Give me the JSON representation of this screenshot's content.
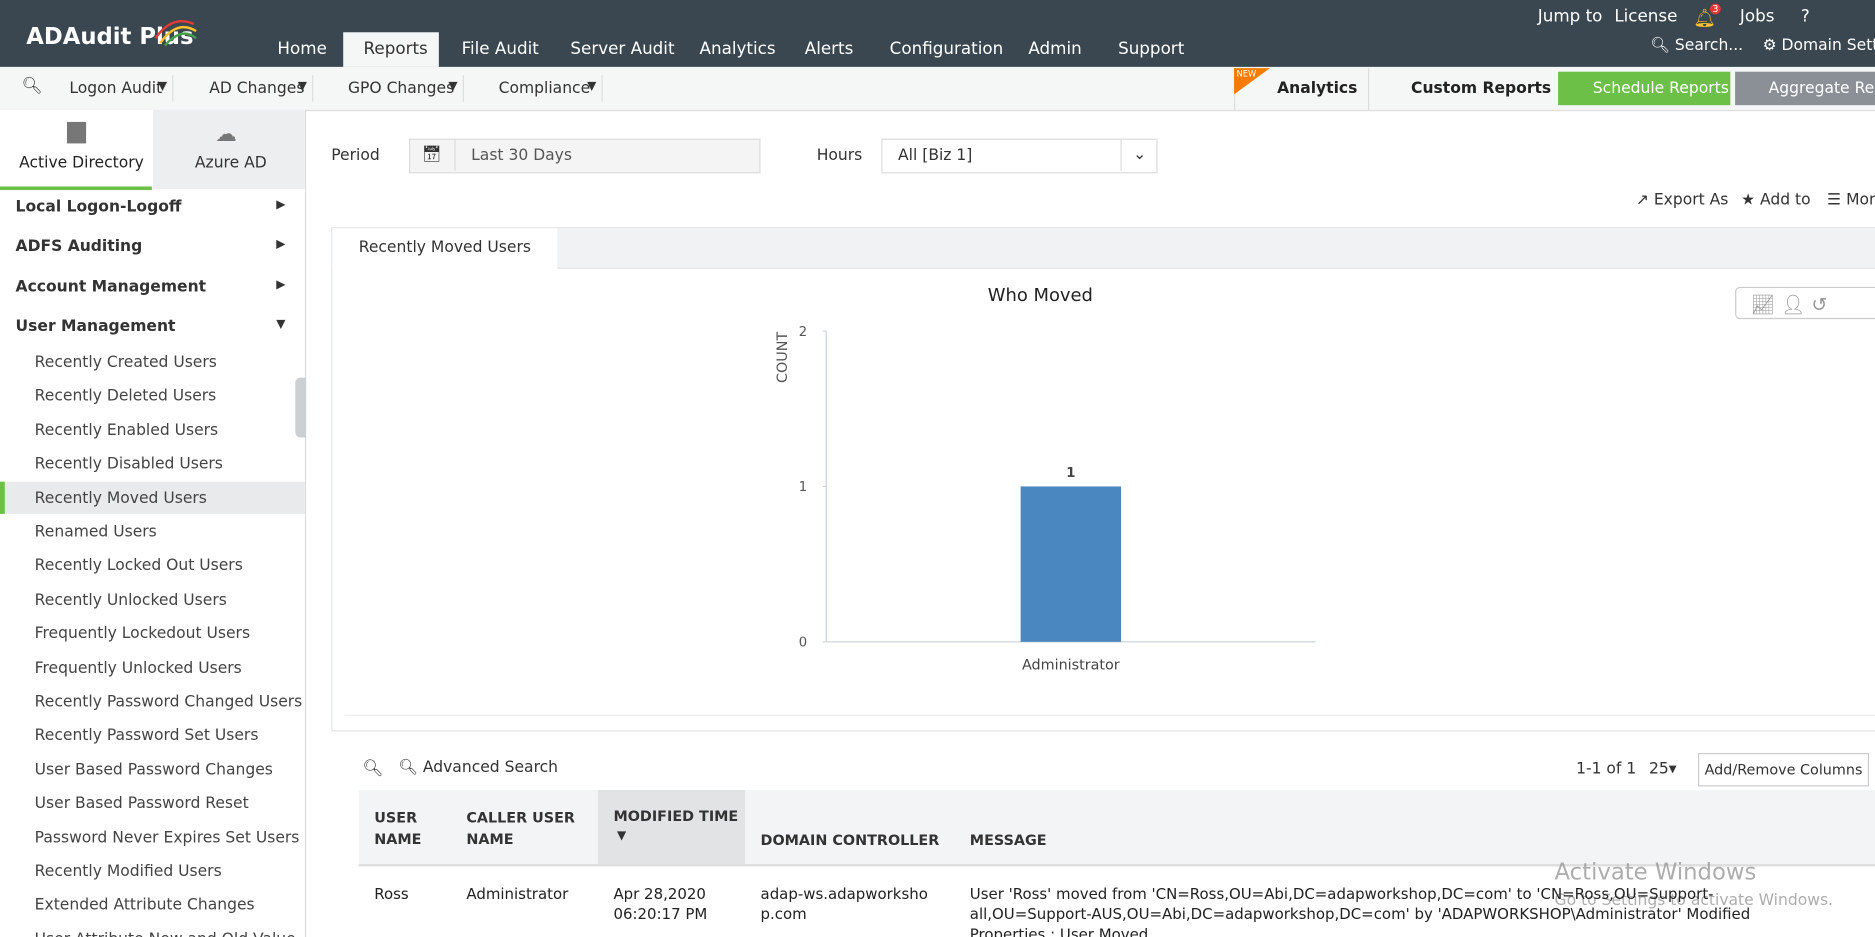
{
  "header": {
    "logo": "ADAudit Plus",
    "top_links": [
      "Jump to",
      "License",
      "Jobs",
      "?"
    ],
    "notification_count": 3,
    "search": "Search...",
    "domain_settings": "Domain Settin"
  },
  "nav_tabs": [
    "Home",
    "Reports",
    "File Audit",
    "Server Audit",
    "Analytics",
    "Alerts",
    "Configuration",
    "Admin",
    "Support"
  ],
  "active_tab": "Reports",
  "sub_menus": [
    "Logon Audit",
    "AD Changes",
    "GPO Changes",
    "Compliance"
  ],
  "new_badge": "NEW",
  "actions": [
    "Analytics",
    "Custom Reports",
    "Schedule Reports",
    "Aggregate Repo"
  ],
  "sidebar": {
    "tabs": [
      "Active Directory",
      "Azure AD"
    ],
    "groups": [
      "Local Logon-Logoff",
      "ADFS Auditing",
      "Account Management",
      "User Management"
    ],
    "items": [
      "Recently Created Users",
      "Recently Deleted Users",
      "Recently Enabled Users",
      "Recently Disabled Users",
      "Recently Moved Users",
      "Renamed Users",
      "Recently Locked Out Users",
      "Recently Unlocked Users",
      "Frequently Lockedout Users",
      "Frequently Unlocked Users",
      "Recently Password Changed Users",
      "Recently Password Set Users",
      "User Based Password Changes",
      "User Based Password Reset",
      "Password Never Expires Set Users",
      "Recently Modified Users",
      "Extended Attribute Changes",
      "User Attribute New and Old Value"
    ],
    "selected": "Recently Moved Users"
  },
  "filters": {
    "period_label": "Period",
    "period": "Last 30 Days",
    "hours_label": "Hours",
    "hours": "All [Biz 1]"
  },
  "toolbar": [
    "Export As",
    "Add to",
    "Mor"
  ],
  "report_tab": "Recently Moved Users",
  "chart_data": {
    "type": "bar",
    "title": "Who Moved",
    "y_label": "COUNT",
    "categories": [
      "Administrator"
    ],
    "values": [
      1
    ],
    "color": "#4a86c0",
    "ylim": [
      0,
      2
    ],
    "yticks": [
      0,
      1,
      2
    ]
  },
  "table": {
    "advanced_search": "Advanced Search",
    "pagination": "1-1 of 1",
    "page_size": 25,
    "add_remove": "Add/Remove Columns",
    "columns": [
      "USER NAME",
      "CALLER USER NAME",
      "MODIFIED TIME",
      "DOMAIN CONTROLLER",
      "MESSAGE"
    ],
    "rows": [
      [
        "Ross",
        "Administrator",
        "Apr 28,2020 06:20:17 PM",
        "adap-ws.adapworkshop.com",
        "User 'Ross' moved from 'CN=Ross,OU=Abi,DC=adapworkshop,DC=com' to 'CN=Ross,OU=Support-all,OU=Support-AUS,OU=Abi,DC=adapworkshop,DC=com' by 'ADAPWORKSHOP\\Administrator' Modified Properties : User Moved"
      ]
    ]
  },
  "watermark": {
    "title": "Activate Windows",
    "subtitle": "Go to Settings to activate Windows."
  }
}
